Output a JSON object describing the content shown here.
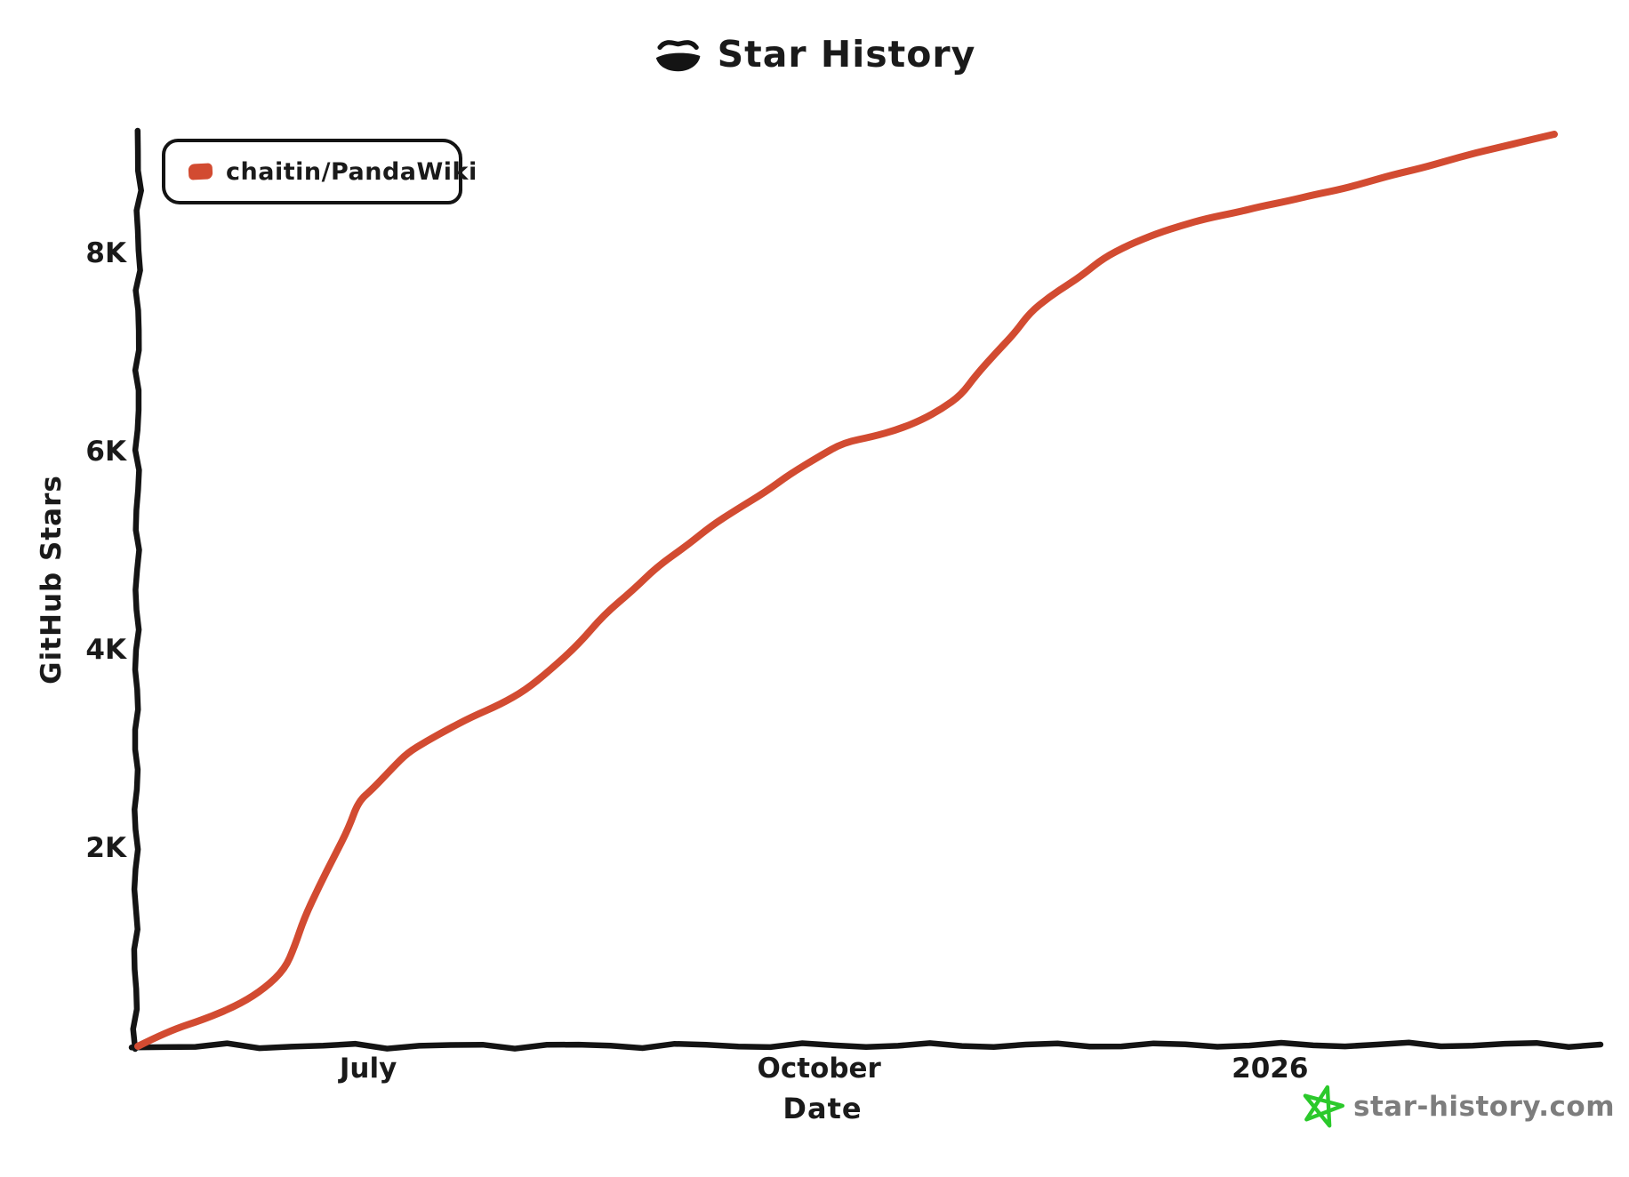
{
  "header": {
    "title": "Star History",
    "logo_icon": "star-history-crown-logo-icon"
  },
  "legend": {
    "marker_icon": "series-color-swatch"
  },
  "watermark": {
    "icon": "green-star-icon",
    "text": "star-history.com"
  },
  "colors": {
    "line": "#d24b31",
    "axis": "#141414",
    "text": "#1a1a1a",
    "watermark_text": "#7d7d7d",
    "watermark_star": "#2bc92b",
    "background": "#ffffff"
  },
  "chart_data": {
    "type": "line",
    "title": "Star History",
    "xlabel": "Date",
    "ylabel": "GitHub Stars",
    "grid": false,
    "legend_position": "top-left",
    "x_domain": [
      "2025-05-15",
      "2026-02-28"
    ],
    "ylim": [
      0,
      9200
    ],
    "x_ticks": [
      {
        "label": "July",
        "date": "2025-07-01"
      },
      {
        "label": "October",
        "date": "2025-10-01"
      },
      {
        "label": "2026",
        "date": "2026-01-01"
      }
    ],
    "y_ticks": [
      {
        "label": "2K",
        "value": 2000
      },
      {
        "label": "4K",
        "value": 4000
      },
      {
        "label": "6K",
        "value": 6000
      },
      {
        "label": "8K",
        "value": 8000
      }
    ],
    "series": [
      {
        "name": "chaitin/PandaWiki",
        "color": "#d24b31",
        "points": [
          {
            "date": "2025-05-15",
            "stars": 0
          },
          {
            "date": "2025-05-21",
            "stars": 150
          },
          {
            "date": "2025-05-29",
            "stars": 280
          },
          {
            "date": "2025-06-05",
            "stars": 430
          },
          {
            "date": "2025-06-10",
            "stars": 590
          },
          {
            "date": "2025-06-14",
            "stars": 780
          },
          {
            "date": "2025-06-16",
            "stars": 1010
          },
          {
            "date": "2025-06-18",
            "stars": 1300
          },
          {
            "date": "2025-06-21",
            "stars": 1615
          },
          {
            "date": "2025-06-24",
            "stars": 1910
          },
          {
            "date": "2025-06-27",
            "stars": 2200
          },
          {
            "date": "2025-06-29",
            "stars": 2470
          },
          {
            "date": "2025-07-02",
            "stars": 2600
          },
          {
            "date": "2025-07-06",
            "stars": 2810
          },
          {
            "date": "2025-07-09",
            "stars": 2960
          },
          {
            "date": "2025-07-13",
            "stars": 3080
          },
          {
            "date": "2025-07-17",
            "stars": 3190
          },
          {
            "date": "2025-07-22",
            "stars": 3320
          },
          {
            "date": "2025-07-28",
            "stars": 3450
          },
          {
            "date": "2025-08-02",
            "stars": 3590
          },
          {
            "date": "2025-08-07",
            "stars": 3790
          },
          {
            "date": "2025-08-13",
            "stars": 4060
          },
          {
            "date": "2025-08-18",
            "stars": 4350
          },
          {
            "date": "2025-08-24",
            "stars": 4600
          },
          {
            "date": "2025-08-29",
            "stars": 4840
          },
          {
            "date": "2025-09-04",
            "stars": 5050
          },
          {
            "date": "2025-09-09",
            "stars": 5250
          },
          {
            "date": "2025-09-14",
            "stars": 5410
          },
          {
            "date": "2025-09-20",
            "stars": 5590
          },
          {
            "date": "2025-09-25",
            "stars": 5770
          },
          {
            "date": "2025-10-01",
            "stars": 5950
          },
          {
            "date": "2025-10-06",
            "stars": 6090
          },
          {
            "date": "2025-10-12",
            "stars": 6150
          },
          {
            "date": "2025-10-17",
            "stars": 6220
          },
          {
            "date": "2025-10-22",
            "stars": 6320
          },
          {
            "date": "2025-10-26",
            "stars": 6430
          },
          {
            "date": "2025-10-30",
            "stars": 6570
          },
          {
            "date": "2025-11-02",
            "stars": 6770
          },
          {
            "date": "2025-11-06",
            "stars": 6990
          },
          {
            "date": "2025-11-10",
            "stars": 7200
          },
          {
            "date": "2025-11-13",
            "stars": 7400
          },
          {
            "date": "2025-11-17",
            "stars": 7560
          },
          {
            "date": "2025-11-21",
            "stars": 7690
          },
          {
            "date": "2025-11-24",
            "stars": 7790
          },
          {
            "date": "2025-11-28",
            "stars": 7950
          },
          {
            "date": "2025-12-03",
            "stars": 8080
          },
          {
            "date": "2025-12-09",
            "stars": 8200
          },
          {
            "date": "2025-12-14",
            "stars": 8280
          },
          {
            "date": "2025-12-19",
            "stars": 8350
          },
          {
            "date": "2025-12-25",
            "stars": 8410
          },
          {
            "date": "2025-12-30",
            "stars": 8470
          },
          {
            "date": "2026-01-05",
            "stars": 8530
          },
          {
            "date": "2026-01-10",
            "stars": 8590
          },
          {
            "date": "2026-01-16",
            "stars": 8650
          },
          {
            "date": "2026-01-21",
            "stars": 8720
          },
          {
            "date": "2026-01-26",
            "stars": 8790
          },
          {
            "date": "2026-02-01",
            "stars": 8860
          },
          {
            "date": "2026-02-06",
            "stars": 8930
          },
          {
            "date": "2026-02-11",
            "stars": 9000
          },
          {
            "date": "2026-02-17",
            "stars": 9070
          },
          {
            "date": "2026-02-22",
            "stars": 9130
          },
          {
            "date": "2026-02-28",
            "stars": 9200
          }
        ]
      }
    ]
  }
}
